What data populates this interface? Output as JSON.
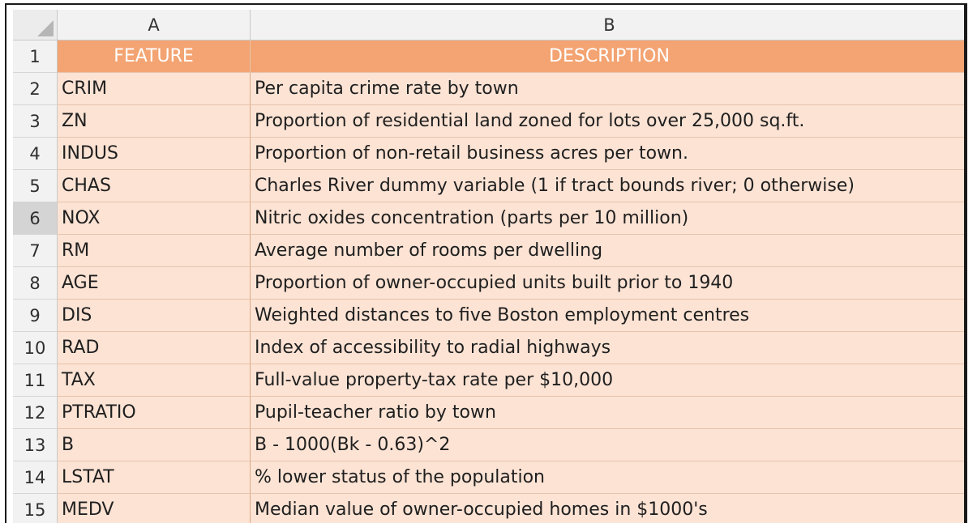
{
  "columns": {
    "a": "A",
    "b": "B"
  },
  "header": {
    "row_number": "1",
    "feature": "FEATURE",
    "description": "DESCRIPTION"
  },
  "rows": [
    {
      "num": "2",
      "feature": "CRIM",
      "description": "Per capita crime rate by town"
    },
    {
      "num": "3",
      "feature": "ZN",
      "description": "Proportion of residential land zoned for lots over 25,000 sq.ft."
    },
    {
      "num": "4",
      "feature": "INDUS",
      "description": "Proportion of non-retail business acres per town."
    },
    {
      "num": "5",
      "feature": "CHAS",
      "description": "Charles River dummy variable (1 if tract bounds river; 0 otherwise)"
    },
    {
      "num": "6",
      "feature": "NOX",
      "description": "Nitric oxides concentration (parts per 10 million)"
    },
    {
      "num": "7",
      "feature": "RM",
      "description": "Average number of rooms per dwelling"
    },
    {
      "num": "8",
      "feature": "AGE",
      "description": "Proportion of owner-occupied units built prior to 1940"
    },
    {
      "num": "9",
      "feature": "DIS",
      "description": "Weighted distances to five Boston employment centres"
    },
    {
      "num": "10",
      "feature": "RAD",
      "description": "Index of accessibility to radial highways"
    },
    {
      "num": "11",
      "feature": "TAX",
      "description": "Full-value property-tax rate per $10,000"
    },
    {
      "num": "12",
      "feature": "PTRATIO",
      "description": "Pupil-teacher ratio by town"
    },
    {
      "num": "13",
      "feature": "B",
      "description": "B - 1000(Bk - 0.63)^2"
    },
    {
      "num": "14",
      "feature": "LSTAT",
      "description": "% lower status of the population"
    },
    {
      "num": "15",
      "feature": "MEDV",
      "description": "Median value of owner-occupied homes in $1000's"
    }
  ],
  "selected_row": "6",
  "colors": {
    "header_fill": "#f3a472",
    "data_fill": "#fce3d4",
    "header_text": "#ffffff"
  }
}
